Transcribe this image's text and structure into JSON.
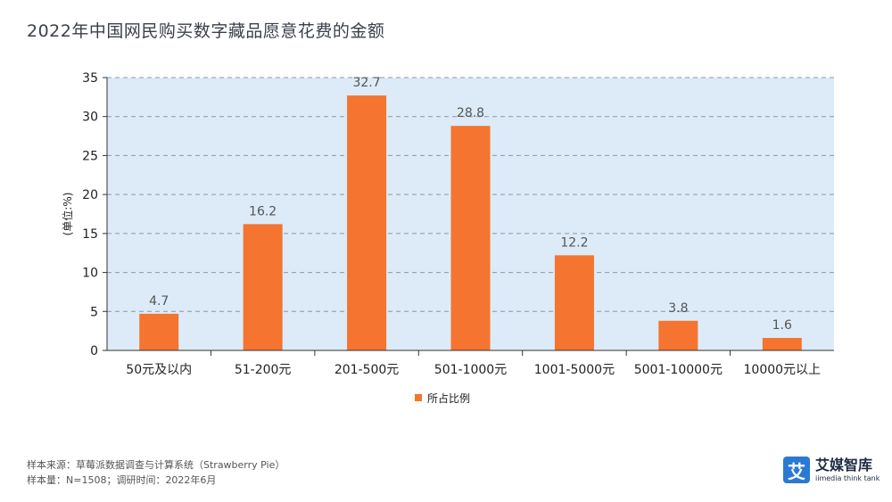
{
  "title": "2022年中国网民购买数字藏品愿意花费的金额",
  "source_line1": "样本来源：草莓派数据调查与计算系统（Strawberry Pie）",
  "source_line2": "样本量：N=1508；调研时间：2022年6月",
  "logo": {
    "cn": "艾媒智库",
    "en": "iimedia think tank",
    "mark": "艾"
  },
  "colors": {
    "bar": "#f47430",
    "plot_bg": "#dcebf7",
    "grid": "#8a98a8",
    "axis": "#333333"
  },
  "chart_data": {
    "type": "bar",
    "categories": [
      "50元及以内",
      "51-200元",
      "201-500元",
      "501-1000元",
      "1001-5000元",
      "5001-10000元",
      "10000元以上"
    ],
    "series": [
      {
        "name": "所占比例",
        "values": [
          4.7,
          16.2,
          32.7,
          28.8,
          12.2,
          3.8,
          1.6
        ]
      }
    ],
    "ylabel": "(单位:%)",
    "ylim": [
      0,
      35
    ],
    "yticks": [
      0,
      5,
      10,
      15,
      20,
      25,
      30,
      35
    ],
    "grid": true,
    "legend_position": "bottom-center"
  }
}
